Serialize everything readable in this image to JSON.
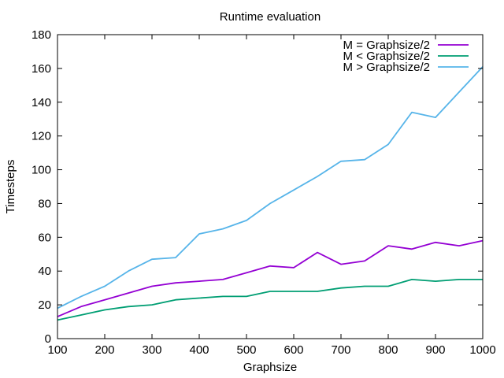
{
  "chart_data": {
    "type": "line",
    "title": "Runtime evaluation",
    "xlabel": "Graphsize",
    "ylabel": "Timesteps",
    "xlim": [
      100,
      1000
    ],
    "ylim": [
      0,
      180
    ],
    "xticks": [
      100,
      200,
      300,
      400,
      500,
      600,
      700,
      800,
      900,
      1000
    ],
    "yticks": [
      0,
      20,
      40,
      60,
      80,
      100,
      120,
      140,
      160,
      180
    ],
    "grid": false,
    "legend_position": "top-right",
    "x": [
      100,
      150,
      200,
      250,
      300,
      350,
      400,
      450,
      500,
      550,
      600,
      650,
      700,
      750,
      800,
      850,
      900,
      950,
      1000
    ],
    "series": [
      {
        "name": "M = Graphsize/2",
        "color": "#9400d3",
        "values": [
          13,
          19,
          23,
          27,
          31,
          33,
          34,
          35,
          39,
          43,
          42,
          51,
          44,
          46,
          55,
          53,
          57,
          55,
          58
        ]
      },
      {
        "name": "M < Graphsize/2",
        "color": "#009e73",
        "values": [
          11,
          14,
          17,
          19,
          20,
          23,
          24,
          25,
          25,
          28,
          28,
          28,
          30,
          31,
          31,
          35,
          34,
          35,
          35
        ]
      },
      {
        "name": "M > Graphsize/2",
        "color": "#56b4e9",
        "values": [
          18,
          25,
          31,
          40,
          47,
          48,
          62,
          65,
          70,
          80,
          88,
          96,
          105,
          106,
          115,
          134,
          131,
          146,
          161
        ]
      }
    ]
  }
}
